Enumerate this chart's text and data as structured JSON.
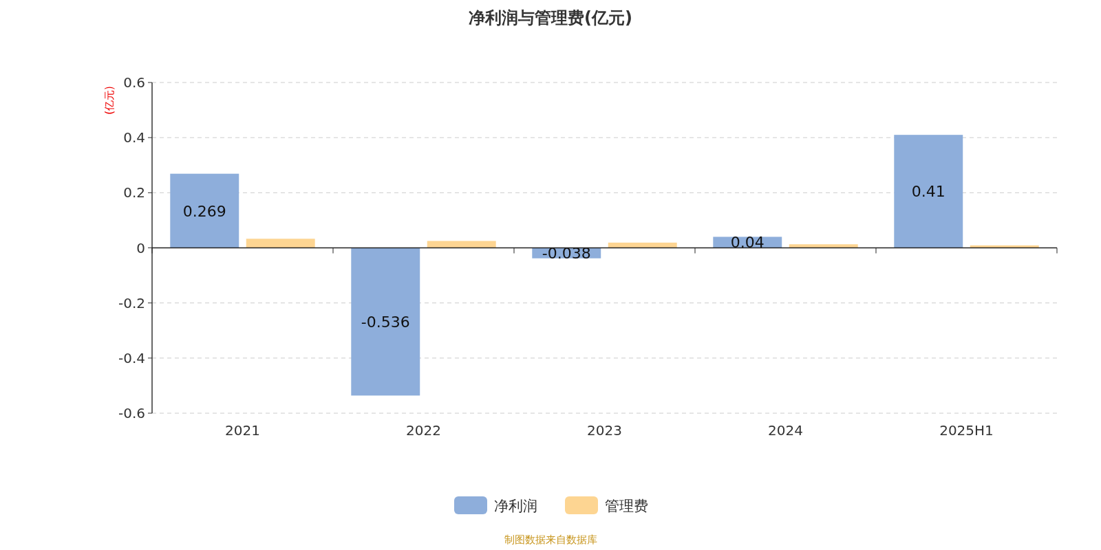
{
  "chart_data": {
    "type": "bar",
    "title": "净利润与管理费(亿元)",
    "ylabel": "(亿元)",
    "annotations": [
      "制图数据来自数据库"
    ],
    "categories": [
      "2021",
      "2022",
      "2023",
      "2024",
      "2025H1"
    ],
    "series": [
      {
        "name": "净利润",
        "color": "#8eaedb",
        "values": [
          0.269,
          -0.536,
          -0.038,
          0.04,
          0.41
        ],
        "value_labels": [
          "0.269",
          "-0.536",
          "-0.038",
          "0.04",
          "0.41"
        ]
      },
      {
        "name": "管理费",
        "color": "#fdd592",
        "values": [
          0.033,
          0.025,
          0.019,
          0.013,
          0.009
        ]
      }
    ],
    "ylim": [
      -0.6,
      0.6
    ],
    "yticks": [
      -0.6,
      -0.4,
      -0.2,
      0,
      0.2,
      0.4,
      0.6
    ],
    "grid": "y",
    "legend": "bottom"
  }
}
